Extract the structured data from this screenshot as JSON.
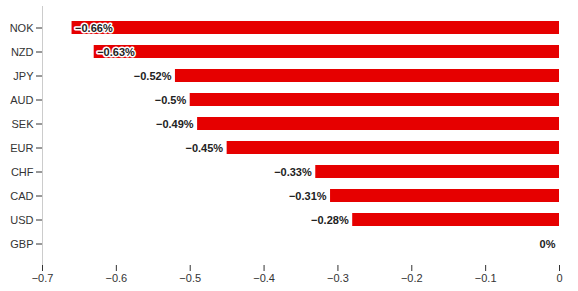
{
  "chart_data": {
    "type": "bar",
    "orientation": "horizontal",
    "categories": [
      "NOK",
      "NZD",
      "JPY",
      "AUD",
      "SEK",
      "EUR",
      "CHF",
      "CAD",
      "USD",
      "GBP"
    ],
    "values": [
      -0.66,
      -0.63,
      -0.52,
      -0.5,
      -0.49,
      -0.45,
      -0.33,
      -0.31,
      -0.28,
      0
    ],
    "value_labels": [
      "−0.66%",
      "−0.63%",
      "−0.52%",
      "−0.5%",
      "−0.49%",
      "−0.45%",
      "−0.33%",
      "−0.31%",
      "−0.28%",
      "0%"
    ],
    "data_labels": true,
    "color": "#e60000",
    "xlim": [
      -0.7,
      0
    ],
    "xticks": [
      {
        "value": -0.7,
        "label": "−0.7"
      },
      {
        "value": -0.6,
        "label": "−0.6"
      },
      {
        "value": -0.5,
        "label": "−0.5"
      },
      {
        "value": -0.4,
        "label": "−0.4"
      },
      {
        "value": -0.3,
        "label": "−0.3"
      },
      {
        "value": -0.2,
        "label": "−0.2"
      },
      {
        "value": -0.1,
        "label": "−0.1"
      },
      0
    ],
    "grid": false
  }
}
